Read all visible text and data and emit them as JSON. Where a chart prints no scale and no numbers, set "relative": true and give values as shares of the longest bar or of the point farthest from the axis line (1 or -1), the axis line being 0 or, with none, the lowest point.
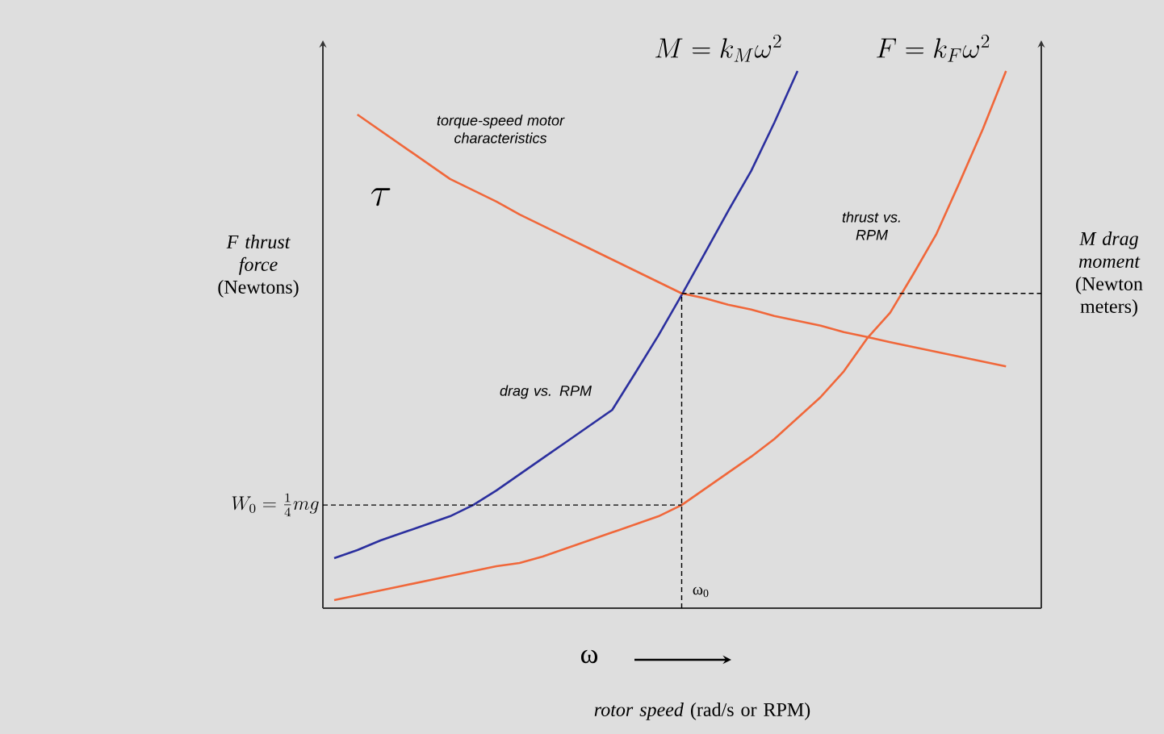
{
  "chart_data": {
    "type": "line",
    "relative": true,
    "ylabel": "*F thrust force* (Newtons)",
    "y2label": "*M drag moment* (Newton meters)",
    "xlabel": "ω",
    "categories": [
      null,
      null,
      null,
      null,
      null,
      null,
      null,
      null,
      null,
      null,
      null,
      null,
      null,
      null,
      null,
      null,
      null,
      null,
      null,
      null,
      null,
      null,
      null,
      null,
      null,
      null,
      null,
      null,
      null,
      null
    ],
    "series": [
      {
        "name": "M = k_M\\omega^2",
        "color": "#2b2f9e",
        "values": [
          0.093,
          0.108,
          0.126,
          0.141,
          0.156,
          0.171,
          0.192,
          0.219,
          0.249,
          0.279,
          0.309,
          0.339,
          0.369,
          0.438,
          0.508,
          0.583,
          0.661,
          0.739,
          0.814,
          0.904,
          1.0,
          null,
          null,
          null,
          null,
          null,
          null,
          null,
          null,
          null
        ]
      },
      {
        "name": "F = k_F\\omega^2",
        "color": "#f0673a",
        "values": [
          0.015,
          0.024,
          0.033,
          0.042,
          0.051,
          0.06,
          0.069,
          0.078,
          0.084,
          0.096,
          0.111,
          0.126,
          0.141,
          0.156,
          0.171,
          0.192,
          0.222,
          0.252,
          0.282,
          0.315,
          0.354,
          0.393,
          0.441,
          0.502,
          0.55,
          0.622,
          0.697,
          0.793,
          0.892,
          1.0
        ]
      },
      {
        "name": "\\tau",
        "color": "#f0673a",
        "values": [
          null,
          0.919,
          0.889,
          0.859,
          0.829,
          0.799,
          0.778,
          0.757,
          0.733,
          0.712,
          0.691,
          0.67,
          0.649,
          0.628,
          0.607,
          0.586,
          0.577,
          0.565,
          0.556,
          0.544,
          0.535,
          0.526,
          0.514,
          0.505,
          0.495,
          0.486,
          0.477,
          0.468,
          0.459,
          0.45
        ]
      }
    ],
    "ref_lines": [
      {
        "axis": "y",
        "value": 0.192,
        "label": "W_0 = \\frac{1}{4}mg",
        "line_style": "dashed"
      },
      {
        "axis": "y",
        "value": 0.586,
        "line_style": "dashed"
      }
    ],
    "annotations": [
      "torque-speed motor characteristics",
      "thrust vs. RPM",
      "drag vs. RPM",
      "*rotor speed* (rad/s or RPM)",
      "ω$_{0}$"
    ]
  }
}
